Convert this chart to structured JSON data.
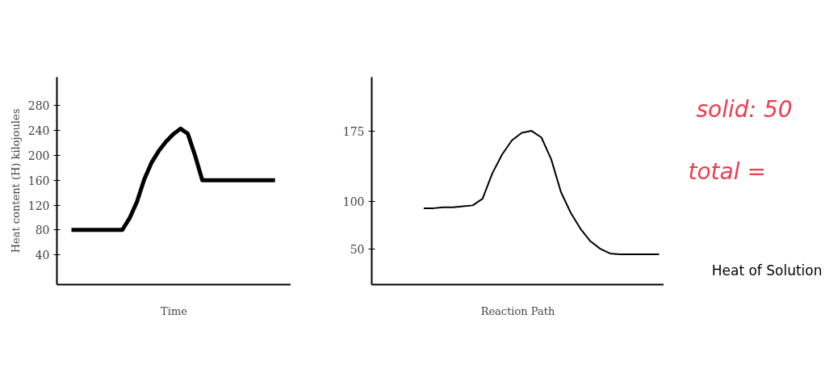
{
  "chart_data": [
    {
      "type": "line",
      "ylabel": "Heat content (H) kilojoules",
      "xlabel": "Time",
      "categories": [
        null,
        null,
        null,
        null,
        null,
        null,
        null,
        null,
        null,
        null,
        null,
        null,
        null,
        null,
        null,
        null,
        null,
        null,
        null,
        null,
        null,
        null,
        null,
        null,
        null,
        null,
        null,
        null,
        null
      ],
      "values": [
        80,
        80,
        80,
        80,
        80,
        80,
        80,
        80,
        99,
        125,
        161,
        188,
        207,
        222,
        234,
        243,
        235,
        200,
        160,
        160,
        160,
        160,
        160,
        160,
        160,
        160,
        160,
        160,
        160
      ],
      "ylim": [
        -8,
        326
      ],
      "yticks": [
        40,
        80,
        120,
        160,
        200,
        240,
        280
      ],
      "tick_labels": "y"
    },
    {
      "type": "line",
      "xlabel": "Reaction Path",
      "categories": [
        null,
        null,
        null,
        null,
        null,
        null,
        null,
        null,
        null,
        null,
        null,
        null,
        null,
        null,
        null,
        null,
        null,
        null,
        null,
        null,
        null,
        null,
        null,
        null,
        null
      ],
      "values": [
        93,
        93,
        94,
        94,
        95,
        96,
        103,
        130,
        150,
        165,
        173,
        175,
        168,
        145,
        110,
        88,
        71,
        58,
        50,
        45,
        44,
        44,
        44,
        44,
        44
      ],
      "ylim": [
        12,
        232
      ],
      "yticks": [
        50,
        100,
        175
      ],
      "tick_labels": "y",
      "annotations": [
        "solid: 50",
        "total =",
        "Heat of Solution"
      ]
    }
  ]
}
